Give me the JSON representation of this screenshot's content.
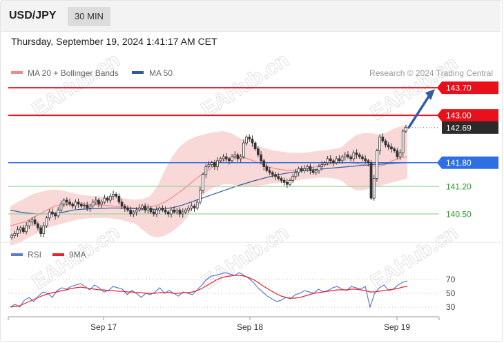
{
  "header": {
    "symbol": "USD/JPY",
    "timeframe": "30 MIN"
  },
  "datetime": "Thursday, September 19, 2024 1:41:17 AM CET",
  "legend": {
    "ma20_bb": "MA 20 + Bollinger Bands",
    "ma50": "MA 50",
    "rsi": "RSI",
    "ma9": "9MA"
  },
  "credit": "Research © 2024 Trading Central",
  "watermark": "EAHub.cn",
  "colors": {
    "resistance": "#e8101a",
    "pivot": "#2f6fe4",
    "support": "#2a9a2a",
    "bb_fill": "#f8d4d4",
    "ma20": "#f08a8a",
    "ma50": "#2f5b9c",
    "rsi": "#5b7ad6",
    "rsi_ma": "#e8222a",
    "candle": "#333333",
    "current_price": "#2b2b2b",
    "arrow": "#2f5da6"
  },
  "chart_data": [
    {
      "type": "candlestick",
      "x_ticks": [
        "Sep 17",
        "Sep 18",
        "Sep 19"
      ],
      "ylim": [
        139.8,
        144.0
      ],
      "levels": [
        {
          "label": "143.70",
          "value": 143.7,
          "role": "resistance"
        },
        {
          "label": "143.00",
          "value": 143.0,
          "role": "resistance"
        },
        {
          "label": "142.69",
          "value": 142.69,
          "role": "current"
        },
        {
          "label": "141.80",
          "value": 141.8,
          "role": "pivot"
        },
        {
          "label": "141.20",
          "value": 141.2,
          "role": "support"
        },
        {
          "label": "140.50",
          "value": 140.5,
          "role": "support"
        }
      ],
      "close": [
        139.95,
        140.0,
        140.1,
        140.15,
        140.05,
        140.2,
        140.3,
        140.35,
        140.25,
        140.15,
        140.0,
        140.2,
        140.4,
        140.55,
        140.5,
        140.45,
        140.6,
        140.75,
        140.85,
        140.8,
        140.75,
        140.7,
        140.8,
        140.75,
        140.7,
        140.72,
        140.65,
        140.7,
        140.8,
        140.85,
        140.75,
        140.8,
        140.9,
        140.85,
        140.95,
        141.0,
        140.95,
        140.8,
        140.7,
        140.65,
        140.6,
        140.5,
        140.55,
        140.6,
        140.65,
        140.7,
        140.6,
        140.65,
        140.55,
        140.5,
        140.6,
        140.65,
        140.6,
        140.55,
        140.5,
        140.6,
        140.55,
        140.6,
        140.5,
        140.55,
        140.6,
        140.65,
        140.7,
        140.65,
        140.8,
        141.1,
        141.5,
        141.7,
        141.75,
        141.8,
        141.7,
        141.85,
        141.9,
        141.95,
        141.9,
        141.85,
        141.95,
        142.0,
        141.9,
        141.95,
        142.3,
        142.45,
        142.4,
        142.3,
        142.15,
        142.0,
        141.85,
        141.7,
        141.6,
        141.55,
        141.5,
        141.45,
        141.4,
        141.35,
        141.3,
        141.25,
        141.35,
        141.45,
        141.55,
        141.65,
        141.6,
        141.65,
        141.7,
        141.6,
        141.55,
        141.6,
        141.7,
        141.75,
        141.8,
        141.9,
        141.85,
        141.8,
        141.9,
        141.85,
        141.95,
        142.0,
        141.95,
        141.9,
        142.05,
        142.0,
        141.95,
        141.9,
        141.85,
        141.8,
        140.9,
        141.4,
        142.1,
        142.45,
        142.35,
        142.25,
        142.2,
        142.15,
        142.1,
        141.95,
        142.05,
        142.6,
        142.69
      ],
      "ma20": [
        140.2,
        140.25,
        140.3,
        140.4,
        140.5,
        140.6,
        140.7,
        140.72,
        140.74,
        140.75,
        140.75,
        140.74,
        140.73,
        140.72,
        140.7,
        140.68,
        140.66,
        140.65,
        140.66,
        140.68,
        140.72,
        140.8,
        140.92,
        141.05,
        141.2,
        141.35,
        141.5,
        141.62,
        141.75,
        141.85,
        141.92,
        141.95,
        141.92,
        141.85,
        141.78,
        141.7,
        141.65,
        141.62,
        141.6,
        141.62,
        141.65,
        141.68,
        141.72,
        141.75,
        141.78,
        141.8,
        141.8,
        141.78,
        141.75,
        141.72,
        141.7,
        141.75,
        141.85,
        141.92,
        141.95
      ],
      "bb_upper": [
        140.7,
        140.8,
        140.9,
        141.0,
        141.05,
        141.1,
        141.12,
        141.1,
        141.05,
        141.0,
        140.98,
        140.96,
        140.95,
        140.93,
        140.92,
        140.9,
        140.88,
        140.86,
        140.88,
        140.95,
        141.2,
        141.6,
        141.95,
        142.2,
        142.35,
        142.45,
        142.5,
        142.55,
        142.58,
        142.6,
        142.55,
        142.45,
        142.35,
        142.25,
        142.2,
        142.15,
        142.1,
        142.08,
        142.05,
        142.05,
        142.05,
        142.08,
        142.1,
        142.12,
        142.15,
        142.18,
        142.35,
        142.5,
        142.55,
        142.55,
        142.52,
        142.55,
        142.65,
        142.72,
        142.75
      ],
      "bb_lower": [
        139.7,
        139.75,
        139.85,
        139.95,
        140.05,
        140.15,
        140.2,
        140.25,
        140.3,
        140.35,
        140.38,
        140.4,
        140.4,
        140.4,
        140.38,
        140.35,
        140.3,
        140.25,
        140.1,
        139.95,
        139.9,
        139.95,
        140.05,
        140.2,
        140.4,
        140.7,
        140.95,
        141.1,
        141.2,
        141.25,
        141.25,
        141.22,
        141.2,
        141.2,
        141.22,
        141.25,
        141.28,
        141.3,
        141.32,
        141.35,
        141.38,
        141.4,
        141.42,
        141.42,
        141.4,
        141.35,
        141.2,
        141.1,
        141.1,
        141.15,
        141.2,
        141.25,
        141.3,
        141.35,
        141.4
      ],
      "ma50": [
        140.6,
        140.55,
        140.52,
        140.5,
        140.5,
        140.52,
        140.55,
        140.6,
        140.62,
        140.63,
        140.64,
        140.65,
        140.65,
        140.64,
        140.63,
        140.62,
        140.62,
        140.63,
        140.66,
        140.72,
        140.8,
        140.88,
        140.96,
        141.04,
        141.12,
        141.2,
        141.27,
        141.34,
        141.4,
        141.46,
        141.51,
        141.55,
        141.58,
        141.61,
        141.63,
        141.65,
        141.67,
        141.69,
        141.71,
        141.73,
        141.75,
        141.76,
        141.78,
        141.79,
        141.8
      ],
      "arrow_target": 143.7
    },
    {
      "type": "line",
      "title": "RSI",
      "ylim": [
        20,
        90
      ],
      "y_ticks": [
        30,
        50,
        70
      ],
      "series": [
        {
          "name": "RSI",
          "values": [
            30,
            34,
            30,
            40,
            44,
            38,
            46,
            52,
            50,
            44,
            54,
            58,
            56,
            60,
            62,
            64,
            60,
            55,
            62,
            58,
            52,
            54,
            60,
            58,
            56,
            48,
            54,
            50,
            44,
            50,
            48,
            52,
            58,
            50,
            54,
            50,
            46,
            52,
            50,
            48,
            55,
            62,
            70,
            75,
            76,
            78,
            80,
            78,
            76,
            80,
            76,
            72,
            66,
            58,
            52,
            46,
            42,
            38,
            40,
            44,
            42,
            48,
            50,
            54,
            52,
            50,
            56,
            52,
            54,
            58,
            60,
            56,
            54,
            60,
            58,
            56,
            60,
            30,
            50,
            58,
            62,
            54,
            56,
            62,
            66,
            68
          ]
        },
        {
          "name": "9MA",
          "values": [
            30,
            31,
            32,
            35,
            38,
            41,
            44,
            47,
            49,
            51,
            52,
            54,
            55,
            57,
            58,
            59,
            58,
            57,
            56,
            55,
            55,
            54,
            54,
            53,
            53,
            52,
            52,
            51,
            51,
            50,
            50,
            50,
            51,
            51,
            51,
            50,
            50,
            51,
            51,
            52,
            54,
            57,
            61,
            65,
            69,
            72,
            74,
            75,
            76,
            76,
            75,
            73,
            70,
            66,
            61,
            57,
            53,
            49,
            46,
            44,
            43,
            43,
            44,
            46,
            48,
            50,
            51,
            52,
            53,
            54,
            55,
            55,
            55,
            56,
            56,
            55,
            54,
            52,
            52,
            53,
            54,
            55,
            56,
            57,
            59,
            60
          ]
        }
      ],
      "dotted_levels": [
        70,
        50,
        30
      ]
    }
  ]
}
